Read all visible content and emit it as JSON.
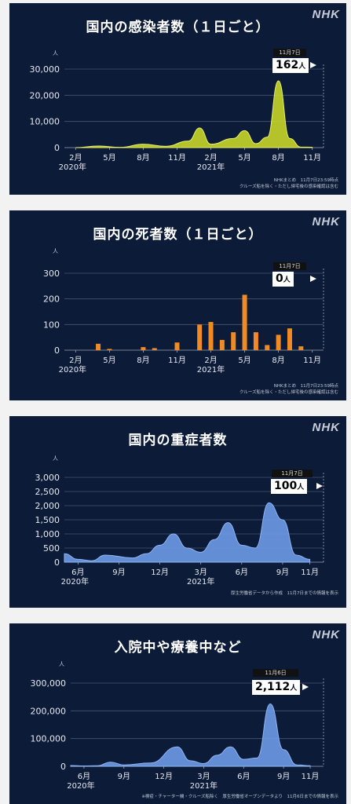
{
  "brand": "NHK",
  "colors": {
    "background": "#0c1b38",
    "cases": "#c8d629",
    "deaths": "#f08a24",
    "severe": "#6d9be8",
    "hospital": "#6d9be8"
  },
  "chart_data": [
    {
      "type": "area",
      "title": "国内の感染者数（１日ごと）",
      "unit": "人",
      "ylim": [
        0,
        30000
      ],
      "yticks": [
        0,
        10000,
        20000,
        30000
      ],
      "ytick_labels": [
        "0",
        "10,000",
        "20,000",
        "30,000"
      ],
      "xtick_labels": [
        "2月",
        "5月",
        "8月",
        "11月",
        "2月",
        "5月",
        "8月",
        "11月"
      ],
      "year_labels": [
        "2020年",
        "2021年"
      ],
      "x": [
        "2020-02",
        "2020-04",
        "2020-06",
        "2020-08",
        "2020-10",
        "2020-12",
        "2021-01",
        "2021-02",
        "2021-04",
        "2021-05",
        "2021-06",
        "2021-07",
        "2021-08",
        "2021-09",
        "2021-10",
        "2021-11"
      ],
      "values": [
        0,
        600,
        100,
        1300,
        500,
        2500,
        7500,
        1300,
        3500,
        6500,
        1500,
        4000,
        25500,
        3500,
        200,
        162
      ],
      "latest": {
        "date": "11月7日",
        "value": "162",
        "unit": "人"
      },
      "note": [
        "NHKまとめ　11月7日23:59時点",
        "クルーズ船を除く・ただし帰宅後の感染確認は含む"
      ]
    },
    {
      "type": "bar",
      "title": "国内の死者数（１日ごと）",
      "unit": "人",
      "ylim": [
        0,
        300
      ],
      "yticks": [
        0,
        100,
        200,
        300
      ],
      "ytick_labels": [
        "0",
        "100",
        "200",
        "300"
      ],
      "xtick_labels": [
        "2月",
        "5月",
        "8月",
        "11月",
        "2月",
        "5月",
        "8月",
        "11月"
      ],
      "year_labels": [
        "2020年",
        "2021年"
      ],
      "x": [
        "2020-02",
        "2020-04",
        "2020-05",
        "2020-06",
        "2020-08",
        "2020-09",
        "2020-11",
        "2021-01",
        "2021-02",
        "2021-03",
        "2021-04",
        "2021-05",
        "2021-06",
        "2021-07",
        "2021-08",
        "2021-09",
        "2021-10",
        "2021-11"
      ],
      "values": [
        0,
        25,
        5,
        0,
        12,
        8,
        30,
        100,
        110,
        40,
        70,
        216,
        70,
        20,
        60,
        85,
        15,
        0
      ],
      "latest": {
        "date": "11月7日",
        "value": "0",
        "unit": "人"
      },
      "note": [
        "NHKまとめ　11月7日23:59時点",
        "クルーズ船を除く・ただし帰宅後の感染確認は含む"
      ]
    },
    {
      "type": "area",
      "title": "国内の重症者数",
      "unit": "人",
      "ylim": [
        0,
        3000
      ],
      "yticks": [
        0,
        500,
        1000,
        1500,
        2000,
        2500,
        3000
      ],
      "ytick_labels": [
        "0",
        "500",
        "1,000",
        "1,500",
        "2,000",
        "2,500",
        "3,000"
      ],
      "xtick_labels": [
        "6月",
        "9月",
        "12月",
        "3月",
        "6月",
        "9月",
        "11月"
      ],
      "year_labels": [
        "2020年",
        "2021年"
      ],
      "x": [
        "2020-05",
        "2020-06",
        "2020-07",
        "2020-08",
        "2020-10",
        "2020-11",
        "2020-12",
        "2021-01",
        "2021-02",
        "2021-03",
        "2021-04",
        "2021-05",
        "2021-06",
        "2021-07",
        "2021-08",
        "2021-09",
        "2021-10",
        "2021-11"
      ],
      "values": [
        300,
        100,
        50,
        250,
        150,
        300,
        600,
        1000,
        500,
        350,
        800,
        1400,
        600,
        500,
        2100,
        1500,
        250,
        100
      ],
      "latest": {
        "date": "11月7日",
        "value": "100",
        "unit": "人"
      },
      "note": [
        "厚生労働省データから作成　11月7日までの情報を表示"
      ]
    },
    {
      "type": "area",
      "title": "入院中や療養中など",
      "unit": "人",
      "ylim": [
        0,
        300000
      ],
      "yticks": [
        0,
        100000,
        200000,
        300000
      ],
      "ytick_labels": [
        "0",
        "100,000",
        "200,000",
        "300,000"
      ],
      "xtick_labels": [
        "6月",
        "9月",
        "12月",
        "3月",
        "6月",
        "9月",
        "11月"
      ],
      "year_labels": [
        "2020年",
        "2021年"
      ],
      "x": [
        "2020-05",
        "2020-06",
        "2020-07",
        "2020-08",
        "2020-09",
        "2020-11",
        "2021-01",
        "2021-02",
        "2021-03",
        "2021-04",
        "2021-05",
        "2021-06",
        "2021-07",
        "2021-08",
        "2021-09",
        "2021-10",
        "2021-11"
      ],
      "values": [
        3000,
        1500,
        2000,
        15000,
        5000,
        12000,
        70000,
        20000,
        10000,
        40000,
        70000,
        25000,
        30000,
        225000,
        60000,
        5000,
        2112
      ],
      "latest": {
        "date": "11月6日",
        "value": "2,112",
        "unit": "人"
      },
      "note": [
        "※検疫・チャーター機・クルーズ船除く　厚生労働省オープンデータより　11月6日までの情報を表示"
      ]
    }
  ]
}
